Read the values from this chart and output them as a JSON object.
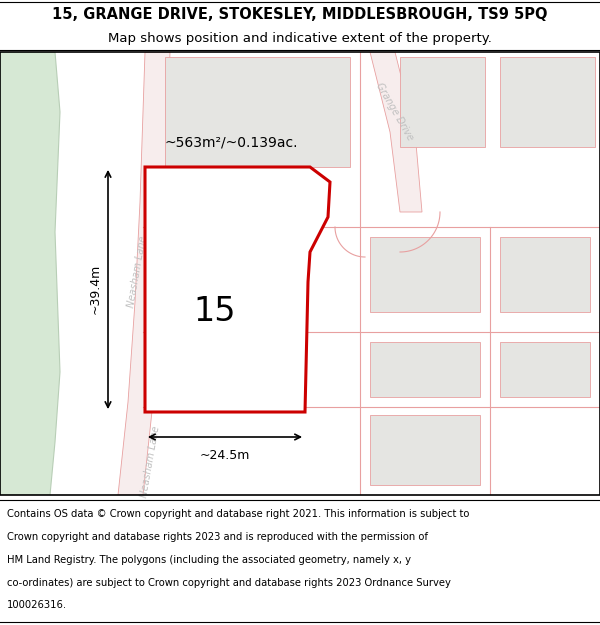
{
  "title_line1": "15, GRANGE DRIVE, STOKESLEY, MIDDLESBROUGH, TS9 5PQ",
  "title_line2": "Map shows position and indicative extent of the property.",
  "footer_lines": [
    "Contains OS data © Crown copyright and database right 2021. This information is subject to",
    "Crown copyright and database rights 2023 and is reproduced with the permission of",
    "HM Land Registry. The polygons (including the associated geometry, namely x, y",
    "co-ordinates) are subject to Crown copyright and database rights 2023 Ordnance Survey",
    "100026316."
  ],
  "map_bg": "#f2f2ee",
  "road_color": "#e8a0a0",
  "road_fill": "#f7eded",
  "block_fill": "#e5e5e2",
  "green_fill": "#d6e8d4",
  "green_edge": "#b8ceb6",
  "highlight_fill": "#ffffff",
  "highlight_stroke": "#cc0000",
  "label_15": "15",
  "area_label": "~563m²/~0.139ac.",
  "dim_width": "~24.5m",
  "dim_height": "~39.4m",
  "road_label_neasham": "Neasham Lane",
  "road_label_grange": "Grange Drive",
  "title_fontsize": 10.5,
  "subtitle_fontsize": 9.5,
  "footer_fontsize": 7.2,
  "map_label_color": "#c0c0c0"
}
